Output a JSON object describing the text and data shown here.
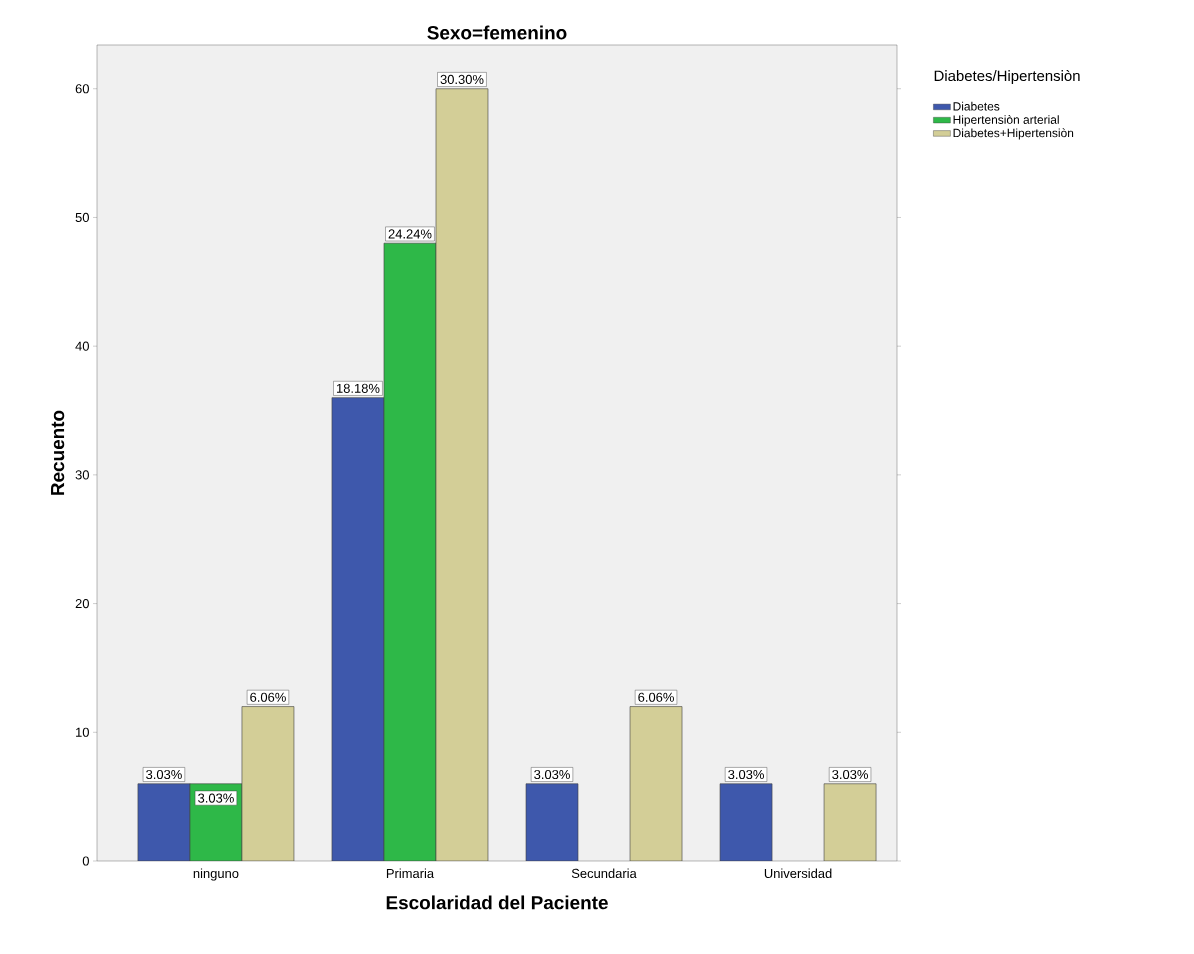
{
  "chart_data": {
    "type": "bar",
    "title": "Sexo=femenino",
    "xlabel": "Escolaridad del Paciente",
    "ylabel": "Recuento",
    "legend_title": "Diabetes/Hipertensiòn",
    "categories": [
      "ninguno",
      "Primaria",
      "Secundaria",
      "Universidad"
    ],
    "series": [
      {
        "name": "Diabetes",
        "color": "#3e58ac",
        "values": [
          6,
          36,
          6,
          6
        ]
      },
      {
        "name": "Hipertensiòn arterial",
        "color": "#2eb848",
        "values": [
          6,
          48,
          null,
          null
        ]
      },
      {
        "name": "Diabetes+Hipertensiòn",
        "color": "#d3ce97",
        "values": [
          12,
          60,
          12,
          6
        ]
      }
    ],
    "annotations": [
      "3.03%",
      "3.03%",
      "6.06%",
      "18.18%",
      "24.24%",
      "30.30%",
      "3.03%",
      "6.06%",
      "3.03%",
      "3.03%"
    ],
    "ylim": [
      0,
      63.4
    ],
    "yticks": [
      0,
      10,
      20,
      30,
      40,
      50,
      60
    ],
    "grid": false,
    "legend": "top right"
  }
}
